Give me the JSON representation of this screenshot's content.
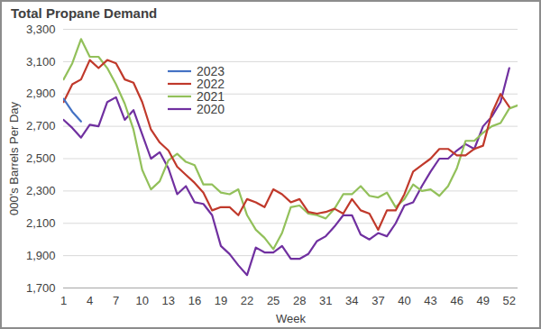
{
  "chart_data": {
    "type": "line",
    "title": "Total Propane Demand",
    "x_label": "Week",
    "y_label": "000's Barrels Per Day",
    "x": [
      1,
      2,
      3,
      4,
      5,
      6,
      7,
      8,
      9,
      10,
      11,
      12,
      13,
      14,
      15,
      16,
      17,
      18,
      19,
      20,
      21,
      22,
      23,
      24,
      25,
      26,
      27,
      28,
      29,
      30,
      31,
      32,
      33,
      34,
      35,
      36,
      37,
      38,
      39,
      40,
      41,
      42,
      43,
      44,
      45,
      46,
      47,
      48,
      49,
      50,
      51,
      52,
      53
    ],
    "series": [
      {
        "name": "2023",
        "color": "#4472c4",
        "values": [
          2870,
          2790,
          2730,
          null,
          null,
          null,
          null,
          null,
          null,
          null,
          null,
          null,
          null,
          null,
          null,
          null,
          null,
          null,
          null,
          null,
          null,
          null,
          null,
          null,
          null,
          null,
          null,
          null,
          null,
          null,
          null,
          null,
          null,
          null,
          null,
          null,
          null,
          null,
          null,
          null,
          null,
          null,
          null,
          null,
          null,
          null,
          null,
          null,
          null,
          null,
          null,
          null,
          null
        ]
      },
      {
        "name": "2022",
        "color": "#c0392b",
        "values": [
          2850,
          2960,
          2990,
          3110,
          3060,
          3110,
          3090,
          2990,
          2970,
          2850,
          2680,
          2600,
          2550,
          2450,
          2400,
          2350,
          2290,
          2180,
          2200,
          2200,
          2150,
          2250,
          2230,
          2200,
          2310,
          2280,
          2230,
          2250,
          2170,
          2160,
          2170,
          2190,
          2160,
          2250,
          2180,
          2160,
          2060,
          2180,
          2180,
          2280,
          2420,
          2460,
          2500,
          2560,
          2560,
          2520,
          2520,
          2560,
          2580,
          2780,
          2900,
          2820,
          null
        ]
      },
      {
        "name": "2021",
        "color": "#92c05a",
        "values": [
          2990,
          3090,
          3240,
          3130,
          3130,
          3060,
          2960,
          2840,
          2680,
          2430,
          2310,
          2360,
          2490,
          2530,
          2480,
          2460,
          2340,
          2340,
          2290,
          2280,
          2310,
          2150,
          2060,
          2010,
          1940,
          2040,
          2200,
          2210,
          2160,
          2150,
          2130,
          2190,
          2280,
          2280,
          2330,
          2270,
          2260,
          2290,
          2200,
          2250,
          2340,
          2300,
          2310,
          2270,
          2330,
          2440,
          2610,
          2610,
          2660,
          2700,
          2720,
          2810,
          2830
        ]
      },
      {
        "name": "2020",
        "color": "#7030a0",
        "values": [
          2740,
          2690,
          2630,
          2710,
          2700,
          2850,
          2880,
          2740,
          2800,
          2650,
          2500,
          2540,
          2440,
          2280,
          2330,
          2230,
          2220,
          2150,
          1960,
          1910,
          1840,
          1780,
          1950,
          1920,
          1920,
          1960,
          1880,
          1880,
          1910,
          1990,
          2020,
          2080,
          2150,
          2150,
          2030,
          2000,
          2040,
          2020,
          2100,
          2210,
          2230,
          2330,
          2420,
          2500,
          2500,
          2550,
          2590,
          2560,
          2700,
          2760,
          2850,
          3060,
          null
        ]
      }
    ],
    "xlim": [
      1,
      53
    ],
    "xticks": [
      1,
      4,
      7,
      10,
      13,
      16,
      19,
      22,
      25,
      28,
      31,
      34,
      37,
      40,
      43,
      46,
      49,
      52
    ],
    "ylim": [
      1700,
      3300
    ],
    "yticks": [
      {
        "value": 1700,
        "label": "1,700"
      },
      {
        "value": 1900,
        "label": "1,900"
      },
      {
        "value": 2100,
        "label": "2,100"
      },
      {
        "value": 2300,
        "label": "2,300"
      },
      {
        "value": 2500,
        "label": "2,500"
      },
      {
        "value": 2700,
        "label": "2,700"
      },
      {
        "value": 2900,
        "label": "2,900"
      },
      {
        "value": 3100,
        "label": "3,100"
      },
      {
        "value": 3300,
        "label": "3,300"
      }
    ],
    "grid": true,
    "legend": "top"
  }
}
